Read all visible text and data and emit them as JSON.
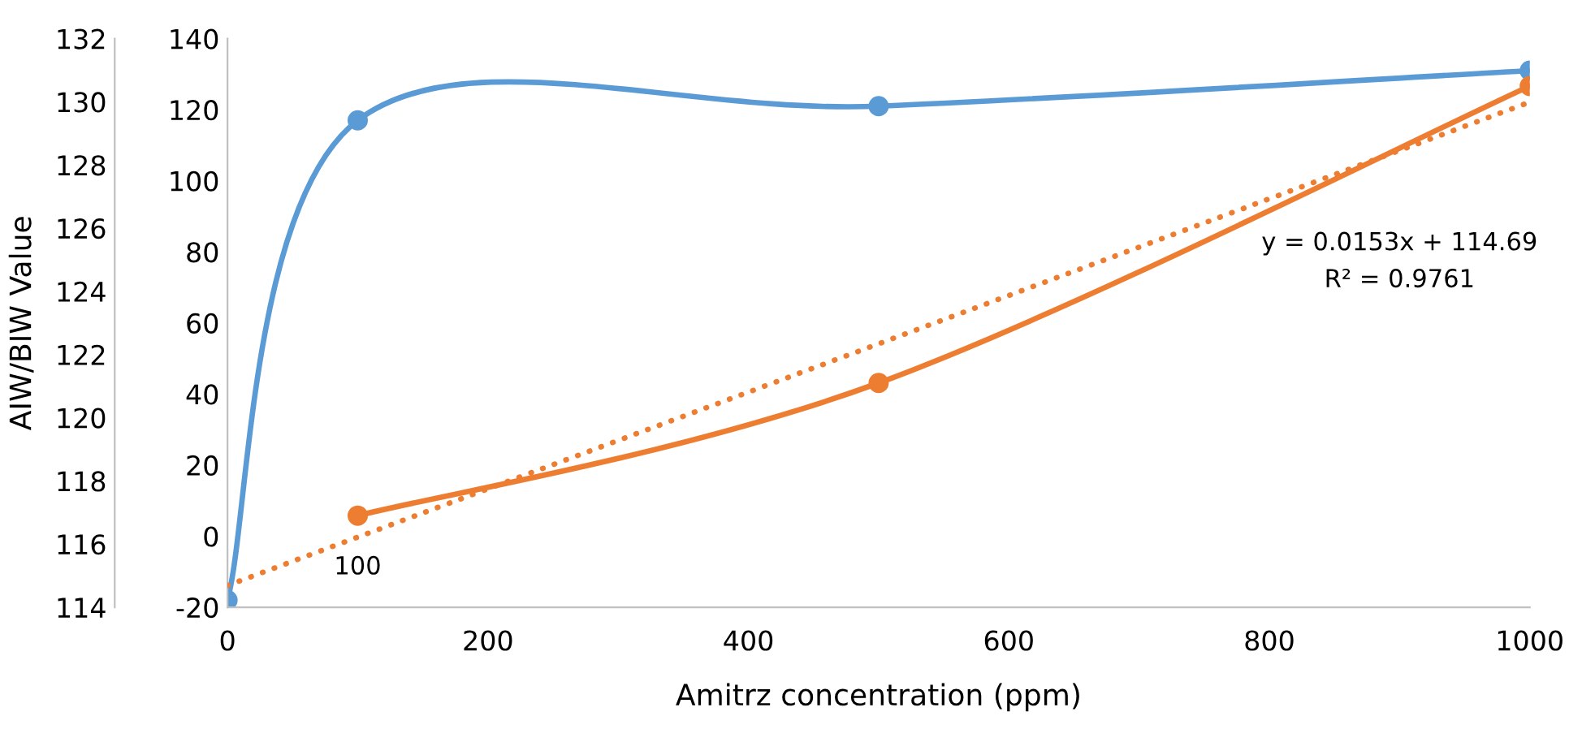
{
  "chart_data": {
    "type": "line",
    "xlabel": "Amitrz concentration (ppm)",
    "ylabel": "AIW/BIW Value",
    "xlim": [
      0,
      1000
    ],
    "xticks": [
      0,
      200,
      400,
      600,
      800,
      1000
    ],
    "ylim": [
      114,
      132
    ],
    "yticks": [
      114,
      116,
      118,
      120,
      122,
      124,
      126,
      128,
      130,
      132
    ],
    "y2lim": [
      -20,
      140
    ],
    "y2ticks": [
      -20,
      0,
      20,
      40,
      60,
      80,
      100,
      120,
      140
    ],
    "grid": false,
    "legend": false,
    "marker": "circle",
    "series": [
      {
        "color": "#5b9bd5",
        "axis": "y2",
        "x": [
          0,
          100,
          500,
          1000
        ],
        "values": [
          -18,
          117,
          121,
          131
        ]
      },
      {
        "color": "#ed7d31",
        "x": [
          100,
          500,
          1000
        ],
        "values": [
          116.9,
          121.1,
          130.5
        ]
      },
      {
        "color": "#ed7d31",
        "marker": "none",
        "line_style": "dotted",
        "x": [
          0,
          1000
        ],
        "values": [
          114.69,
          129.99
        ]
      }
    ],
    "annotations": [
      "y = 0.0153x + 114.69",
      "R² = 0.9761",
      "100"
    ]
  }
}
